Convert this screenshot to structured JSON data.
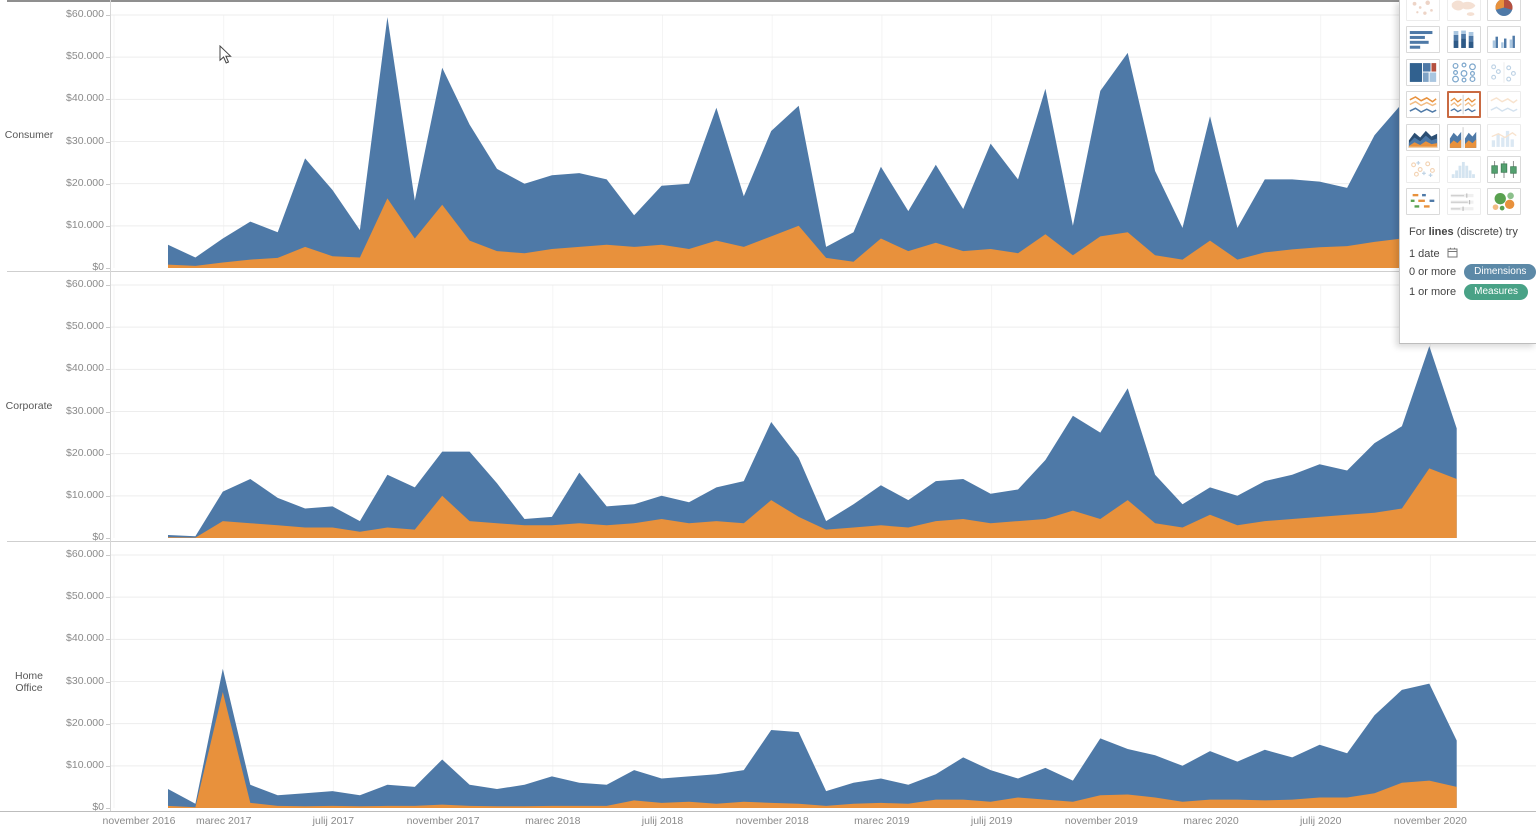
{
  "colors": {
    "blue": "#4e79a7",
    "orange": "#e8913c",
    "selected_border": "#c96a42",
    "dimensions_pill": "#5c89a7",
    "measures_pill": "#49a286"
  },
  "y_axis": {
    "tick_labels": [
      "$60.000",
      "$50.000",
      "$40.000",
      "$30.000",
      "$20.000",
      "$10.000",
      "$0"
    ],
    "max": 60000,
    "min": 0
  },
  "x_axis": {
    "tick_labels": [
      "november 2016",
      "marec 2017",
      "julij 2017",
      "november 2017",
      "marec 2018",
      "julij 2018",
      "november 2018",
      "marec 2019",
      "julij 2019",
      "november 2019",
      "marec 2020",
      "julij 2020",
      "november 2020"
    ]
  },
  "chart_data": {
    "type": "area",
    "stacked": true,
    "grid": true,
    "x": [
      "2017-01",
      "2017-02",
      "2017-03",
      "2017-04",
      "2017-05",
      "2017-06",
      "2017-07",
      "2017-08",
      "2017-09",
      "2017-10",
      "2017-11",
      "2017-12",
      "2018-01",
      "2018-02",
      "2018-03",
      "2018-04",
      "2018-05",
      "2018-06",
      "2018-07",
      "2018-08",
      "2018-09",
      "2018-10",
      "2018-11",
      "2018-12",
      "2019-01",
      "2019-02",
      "2019-03",
      "2019-04",
      "2019-05",
      "2019-06",
      "2019-07",
      "2019-08",
      "2019-09",
      "2019-10",
      "2019-11",
      "2019-12",
      "2020-01",
      "2020-02",
      "2020-03",
      "2020-04",
      "2020-05",
      "2020-06",
      "2020-07",
      "2020-08",
      "2020-09",
      "2020-10",
      "2020-11",
      "2020-12"
    ],
    "ylim": [
      0,
      60000
    ],
    "panels": [
      {
        "label": "Consumer",
        "series": [
          {
            "name": "orange",
            "color": "#e8913c",
            "values": [
              800,
              500,
              1300,
              2000,
              2400,
              5000,
              2800,
              2500,
              16500,
              7000,
              15000,
              6500,
              4000,
              3500,
              4500,
              5000,
              5500,
              5000,
              5500,
              4500,
              6500,
              5000,
              7500,
              10000,
              2400,
              1500,
              7000,
              4000,
              6000,
              4000,
              4500,
              3500,
              8000,
              3000,
              7500,
              8500,
              3000,
              2000,
              6500,
              2000,
              3700,
              4400,
              4900,
              5200,
              6200,
              7000,
              8100,
              8600
            ]
          },
          {
            "name": "blue",
            "color": "#4e79a7",
            "values": [
              4700,
              2000,
              5700,
              9000,
              6100,
              21000,
              15700,
              6500,
              43000,
              9000,
              32500,
              27500,
              19500,
              16500,
              17500,
              17500,
              15500,
              7500,
              14000,
              15500,
              31500,
              12000,
              25000,
              28500,
              2600,
              7000,
              17000,
              9500,
              18500,
              10000,
              25000,
              17500,
              34500,
              7000,
              34500,
              42500,
              20000,
              7500,
              29500,
              7500,
              17300,
              16600,
              15600,
              13800,
              25300,
              32000,
              36900,
              27400
            ]
          }
        ]
      },
      {
        "label": "Corporate",
        "series": [
          {
            "name": "orange",
            "color": "#e8913c",
            "values": [
              200,
              100,
              4000,
              3500,
              3000,
              2500,
              2500,
              1500,
              2500,
              2000,
              10000,
              4000,
              3500,
              3000,
              3000,
              3500,
              3000,
              3500,
              4500,
              3500,
              4000,
              3500,
              9000,
              5000,
              2000,
              2500,
              3000,
              2500,
              4000,
              4500,
              3500,
              4000,
              4500,
              6500,
              4500,
              9000,
              3500,
              2500,
              5500,
              3000,
              4000,
              4500,
              5000,
              5500,
              6000,
              7000,
              16500,
              14000
            ]
          },
          {
            "name": "blue",
            "color": "#4e79a7",
            "values": [
              500,
              300,
              7000,
              10500,
              6500,
              4500,
              5000,
              2500,
              12500,
              10000,
              10500,
              16500,
              9500,
              1500,
              2000,
              12000,
              4500,
              4500,
              5500,
              5000,
              8000,
              10000,
              18500,
              14000,
              2000,
              5500,
              9500,
              6500,
              9500,
              9500,
              7000,
              7500,
              14000,
              22500,
              20500,
              26500,
              11500,
              5500,
              6500,
              7000,
              9500,
              10500,
              12500,
              10500,
              16500,
              19500,
              29000,
              12000
            ]
          }
        ]
      },
      {
        "label": "Home Office",
        "series": [
          {
            "name": "orange",
            "color": "#e8913c",
            "values": [
              500,
              200,
              27500,
              1200,
              500,
              400,
              500,
              400,
              500,
              500,
              800,
              500,
              400,
              400,
              500,
              500,
              500,
              1800,
              1200,
              1500,
              1000,
              1500,
              1200,
              1000,
              500,
              1000,
              1200,
              1000,
              2000,
              2000,
              1500,
              2500,
              2000,
              1500,
              3000,
              3200,
              2500,
              1500,
              2000,
              2000,
              1800,
              2000,
              2500,
              2500,
              3500,
              6000,
              6500,
              5000
            ]
          },
          {
            "name": "blue",
            "color": "#4e79a7",
            "values": [
              4000,
              800,
              5500,
              4300,
              2500,
              3100,
              3500,
              2600,
              5000,
              4500,
              10700,
              5000,
              4100,
              5100,
              7000,
              5500,
              5000,
              7200,
              5800,
              6000,
              7000,
              7500,
              17300,
              17000,
              3500,
              5000,
              5800,
              4500,
              6000,
              10000,
              7500,
              4500,
              7500,
              5000,
              13500,
              10800,
              10000,
              8500,
              11500,
              9000,
              12000,
              10000,
              12500,
              10500,
              18500,
              22000,
              23000,
              11000
            ]
          }
        ]
      }
    ]
  },
  "show_me": {
    "icons": [
      {
        "name": "symbol-map",
        "state": "disabled"
      },
      {
        "name": "filled-map",
        "state": "disabled"
      },
      {
        "name": "pie-chart",
        "state": "normal"
      },
      {
        "name": "horizontal-bars",
        "state": "normal"
      },
      {
        "name": "stacked-bars",
        "state": "normal"
      },
      {
        "name": "side-by-side-bars",
        "state": "normal"
      },
      {
        "name": "treemap",
        "state": "normal"
      },
      {
        "name": "circle-views",
        "state": "normal"
      },
      {
        "name": "side-by-side-circles",
        "state": "disabled"
      },
      {
        "name": "lines-continuous",
        "state": "normal"
      },
      {
        "name": "lines-discrete",
        "state": "selected"
      },
      {
        "name": "dual-lines",
        "state": "disabled"
      },
      {
        "name": "area-continuous",
        "state": "normal"
      },
      {
        "name": "area-discrete",
        "state": "normal"
      },
      {
        "name": "dual-combination",
        "state": "disabled"
      },
      {
        "name": "scatter-plot",
        "state": "disabled"
      },
      {
        "name": "histogram",
        "state": "disabled"
      },
      {
        "name": "box-and-whisker",
        "state": "normal"
      },
      {
        "name": "gantt",
        "state": "normal"
      },
      {
        "name": "bullet-graph",
        "state": "disabled"
      },
      {
        "name": "packed-bubbles",
        "state": "normal"
      }
    ],
    "footer": {
      "line1_prefix": "For ",
      "line1_bold": "lines",
      "line1_suffix": " (discrete) try",
      "line2": "1 date",
      "line3_prefix": "0 or more",
      "line3_pill": "Dimensions",
      "line4_prefix": "1 or more",
      "line4_pill": "Measures"
    }
  }
}
